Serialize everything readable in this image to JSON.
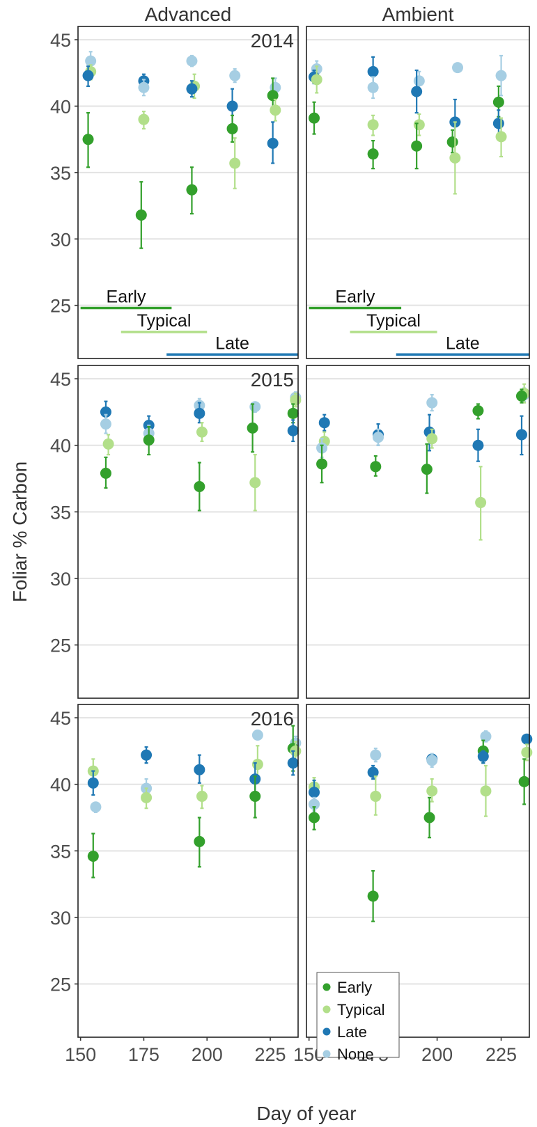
{
  "chart_data": {
    "type": "scatter",
    "xlabel": "Day of year",
    "ylabel": "Foliar % Carbon",
    "xlim": [
      149,
      236
    ],
    "ylim": [
      21,
      46
    ],
    "xticks": [
      150,
      175,
      200,
      225
    ],
    "yticks": [
      25,
      30,
      35,
      40,
      45
    ],
    "columns": [
      "Advanced",
      "Ambient"
    ],
    "rows": [
      "2014",
      "2015",
      "2016"
    ],
    "grid": true,
    "legend_position": "bottom-left of bottom-right panel",
    "series": [
      {
        "name": "Early",
        "color": "#33a02c"
      },
      {
        "name": "Typical",
        "color": "#b2df8a"
      },
      {
        "name": "Late",
        "color": "#1f78b4"
      },
      {
        "name": "None",
        "color": "#a6cee3"
      }
    ],
    "bars_2014": {
      "Advanced": [
        {
          "label": "Early",
          "x0": 150,
          "x1": 186,
          "y": 24.8,
          "color": "#33a02c"
        },
        {
          "label": "Typical",
          "x0": 166,
          "x1": 200,
          "y": 23.0,
          "color": "#b2df8a"
        },
        {
          "label": "Late",
          "x0": 184,
          "x1": 236,
          "y": 21.3,
          "color": "#1f78b4"
        }
      ],
      "Ambient": [
        {
          "label": "Early",
          "x0": 150,
          "x1": 186,
          "y": 24.8,
          "color": "#33a02c"
        },
        {
          "label": "Typical",
          "x0": 166,
          "x1": 200,
          "y": 23.0,
          "color": "#b2df8a"
        },
        {
          "label": "Late",
          "x0": 184,
          "x1": 236,
          "y": 21.3,
          "color": "#1f78b4"
        }
      ]
    },
    "panels": [
      {
        "row": "2014",
        "col": "Advanced",
        "points": [
          {
            "series": "None",
            "x": 154,
            "y": 43.4,
            "lo": 42.7,
            "hi": 44.1
          },
          {
            "series": "Typical",
            "x": 154,
            "y": 42.6,
            "lo": 42.0,
            "hi": 43.1
          },
          {
            "series": "Late",
            "x": 153,
            "y": 42.3,
            "lo": 41.5,
            "hi": 43.0
          },
          {
            "series": "Early",
            "x": 153,
            "y": 37.5,
            "lo": 35.4,
            "hi": 39.5
          },
          {
            "series": "Late",
            "x": 175,
            "y": 41.9,
            "lo": 41.4,
            "hi": 42.4
          },
          {
            "series": "None",
            "x": 175,
            "y": 41.4,
            "lo": 40.8,
            "hi": 42.0
          },
          {
            "series": "Typical",
            "x": 175,
            "y": 39.0,
            "lo": 38.3,
            "hi": 39.6
          },
          {
            "series": "Early",
            "x": 174,
            "y": 31.8,
            "lo": 29.3,
            "hi": 34.3
          },
          {
            "series": "None",
            "x": 194,
            "y": 43.4,
            "lo": 43.0,
            "hi": 43.8
          },
          {
            "series": "Typical",
            "x": 195,
            "y": 41.5,
            "lo": 40.6,
            "hi": 42.4
          },
          {
            "series": "Late",
            "x": 194,
            "y": 41.3,
            "lo": 40.7,
            "hi": 41.9
          },
          {
            "series": "Early",
            "x": 194,
            "y": 33.7,
            "lo": 31.9,
            "hi": 35.4
          },
          {
            "series": "None",
            "x": 211,
            "y": 42.3,
            "lo": 41.8,
            "hi": 42.8
          },
          {
            "series": "Late",
            "x": 210,
            "y": 40.0,
            "lo": 38.6,
            "hi": 41.3
          },
          {
            "series": "Early",
            "x": 210,
            "y": 38.3,
            "lo": 37.3,
            "hi": 39.3
          },
          {
            "series": "Typical",
            "x": 211,
            "y": 35.7,
            "lo": 33.8,
            "hi": 37.6
          },
          {
            "series": "None",
            "x": 227,
            "y": 41.4,
            "lo": 40.8,
            "hi": 42.1
          },
          {
            "series": "Early",
            "x": 226,
            "y": 40.8,
            "lo": 39.5,
            "hi": 42.1
          },
          {
            "series": "Typical",
            "x": 227,
            "y": 39.7,
            "lo": 38.9,
            "hi": 40.5
          },
          {
            "series": "Late",
            "x": 226,
            "y": 37.2,
            "lo": 35.7,
            "hi": 38.8
          }
        ]
      },
      {
        "row": "2014",
        "col": "Ambient",
        "points": [
          {
            "series": "None",
            "x": 153,
            "y": 42.8,
            "lo": 42.2,
            "hi": 43.4
          },
          {
            "series": "Late",
            "x": 152,
            "y": 42.2,
            "lo": 41.7,
            "hi": 42.7
          },
          {
            "series": "Typical",
            "x": 153,
            "y": 42.0,
            "lo": 41.0,
            "hi": 43.0
          },
          {
            "series": "Early",
            "x": 152,
            "y": 39.1,
            "lo": 37.9,
            "hi": 40.3
          },
          {
            "series": "Late",
            "x": 175,
            "y": 42.6,
            "lo": 41.5,
            "hi": 43.7
          },
          {
            "series": "None",
            "x": 175,
            "y": 41.4,
            "lo": 40.6,
            "hi": 42.2
          },
          {
            "series": "Typical",
            "x": 175,
            "y": 38.6,
            "lo": 37.8,
            "hi": 39.3
          },
          {
            "series": "Early",
            "x": 175,
            "y": 36.4,
            "lo": 35.3,
            "hi": 37.4
          },
          {
            "series": "None",
            "x": 193,
            "y": 41.9,
            "lo": 41.1,
            "hi": 42.6
          },
          {
            "series": "Late",
            "x": 192,
            "y": 41.1,
            "lo": 39.5,
            "hi": 42.7
          },
          {
            "series": "Typical",
            "x": 193,
            "y": 38.6,
            "lo": 37.8,
            "hi": 39.4
          },
          {
            "series": "Early",
            "x": 192,
            "y": 37.0,
            "lo": 35.3,
            "hi": 38.7
          },
          {
            "series": "None",
            "x": 208,
            "y": 42.9,
            "lo": 42.6,
            "hi": 43.2
          },
          {
            "series": "Late",
            "x": 207,
            "y": 38.8,
            "lo": 37.1,
            "hi": 40.5
          },
          {
            "series": "Early",
            "x": 206,
            "y": 37.3,
            "lo": 36.5,
            "hi": 38.2
          },
          {
            "series": "Typical",
            "x": 207,
            "y": 36.1,
            "lo": 33.4,
            "hi": 38.8
          },
          {
            "series": "None",
            "x": 225,
            "y": 42.3,
            "lo": 40.8,
            "hi": 43.8
          },
          {
            "series": "Early",
            "x": 224,
            "y": 40.3,
            "lo": 39.2,
            "hi": 41.5
          },
          {
            "series": "Late",
            "x": 224,
            "y": 38.7,
            "lo": 37.6,
            "hi": 39.7
          },
          {
            "series": "Typical",
            "x": 225,
            "y": 37.7,
            "lo": 36.2,
            "hi": 39.1
          }
        ]
      },
      {
        "row": "2015",
        "col": "Advanced",
        "points": [
          {
            "series": "Late",
            "x": 160,
            "y": 42.5,
            "lo": 41.7,
            "hi": 43.3
          },
          {
            "series": "None",
            "x": 160,
            "y": 41.6,
            "lo": 40.9,
            "hi": 42.3
          },
          {
            "series": "Typical",
            "x": 161,
            "y": 40.1,
            "lo": 39.3,
            "hi": 40.8
          },
          {
            "series": "Early",
            "x": 160,
            "y": 37.9,
            "lo": 36.8,
            "hi": 39.1
          },
          {
            "series": "Late",
            "x": 177,
            "y": 41.5,
            "lo": 40.7,
            "hi": 42.2
          },
          {
            "series": "None",
            "x": 177,
            "y": 40.9,
            "lo": 40.3,
            "hi": 41.5
          },
          {
            "series": "Early",
            "x": 177,
            "y": 40.4,
            "lo": 39.3,
            "hi": 41.4
          },
          {
            "series": "None",
            "x": 197,
            "y": 43.0,
            "lo": 42.4,
            "hi": 43.5
          },
          {
            "series": "Late",
            "x": 197,
            "y": 42.4,
            "lo": 41.7,
            "hi": 43.2
          },
          {
            "series": "Typical",
            "x": 198,
            "y": 41.0,
            "lo": 40.3,
            "hi": 41.7
          },
          {
            "series": "Early",
            "x": 197,
            "y": 36.9,
            "lo": 35.1,
            "hi": 38.7
          },
          {
            "series": "None",
            "x": 219,
            "y": 42.9,
            "lo": 42.5,
            "hi": 43.2
          },
          {
            "series": "Early",
            "x": 218,
            "y": 41.3,
            "lo": 39.5,
            "hi": 43.1
          },
          {
            "series": "Typical",
            "x": 219,
            "y": 37.2,
            "lo": 35.1,
            "hi": 39.3
          },
          {
            "series": "None",
            "x": 235,
            "y": 43.6,
            "lo": 43.2,
            "hi": 44.0
          },
          {
            "series": "Typical",
            "x": 235,
            "y": 43.4,
            "lo": 42.9,
            "hi": 43.9
          },
          {
            "series": "Early",
            "x": 234,
            "y": 42.4,
            "lo": 41.7,
            "hi": 43.1
          },
          {
            "series": "Late",
            "x": 234,
            "y": 41.1,
            "lo": 40.3,
            "hi": 41.9
          }
        ]
      },
      {
        "row": "2015",
        "col": "Ambient",
        "points": [
          {
            "series": "Late",
            "x": 156,
            "y": 41.7,
            "lo": 41.1,
            "hi": 42.3
          },
          {
            "series": "Typical",
            "x": 156,
            "y": 40.3,
            "lo": 39.6,
            "hi": 41.0
          },
          {
            "series": "None",
            "x": 155,
            "y": 39.8,
            "lo": 39.1,
            "hi": 40.5
          },
          {
            "series": "Early",
            "x": 155,
            "y": 38.6,
            "lo": 37.2,
            "hi": 40.0
          },
          {
            "series": "Late",
            "x": 177,
            "y": 40.8,
            "lo": 40.0,
            "hi": 41.6
          },
          {
            "series": "None",
            "x": 177,
            "y": 40.6,
            "lo": 40.0,
            "hi": 41.2
          },
          {
            "series": "Early",
            "x": 176,
            "y": 38.4,
            "lo": 37.7,
            "hi": 39.2
          },
          {
            "series": "None",
            "x": 198,
            "y": 43.2,
            "lo": 42.6,
            "hi": 43.8
          },
          {
            "series": "Late",
            "x": 197,
            "y": 41.0,
            "lo": 39.6,
            "hi": 42.3
          },
          {
            "series": "Typical",
            "x": 198,
            "y": 40.5,
            "lo": 39.8,
            "hi": 41.2
          },
          {
            "series": "Early",
            "x": 196,
            "y": 38.2,
            "lo": 36.4,
            "hi": 40.1
          },
          {
            "series": "Early",
            "x": 216,
            "y": 42.6,
            "lo": 42.0,
            "hi": 43.1
          },
          {
            "series": "Late",
            "x": 216,
            "y": 40.0,
            "lo": 38.8,
            "hi": 41.2
          },
          {
            "series": "Typical",
            "x": 217,
            "y": 35.7,
            "lo": 32.9,
            "hi": 38.4
          },
          {
            "series": "None",
            "x": 234,
            "y": 43.8,
            "lo": 43.3,
            "hi": 44.3
          },
          {
            "series": "Typical",
            "x": 234,
            "y": 43.9,
            "lo": 43.2,
            "hi": 44.6
          },
          {
            "series": "Early",
            "x": 233,
            "y": 43.7,
            "lo": 43.2,
            "hi": 44.2
          },
          {
            "series": "Late",
            "x": 233,
            "y": 40.8,
            "lo": 39.3,
            "hi": 42.2
          }
        ]
      },
      {
        "row": "2016",
        "col": "Advanced",
        "points": [
          {
            "series": "Typical",
            "x": 155,
            "y": 41.0,
            "lo": 40.1,
            "hi": 41.9
          },
          {
            "series": "Late",
            "x": 155,
            "y": 40.1,
            "lo": 39.2,
            "hi": 41.0
          },
          {
            "series": "None",
            "x": 156,
            "y": 38.3,
            "lo": 37.9,
            "hi": 38.6
          },
          {
            "series": "Early",
            "x": 155,
            "y": 34.6,
            "lo": 33.0,
            "hi": 36.3
          },
          {
            "series": "Late",
            "x": 176,
            "y": 42.2,
            "lo": 41.6,
            "hi": 42.8
          },
          {
            "series": "None",
            "x": 176,
            "y": 39.7,
            "lo": 39.1,
            "hi": 40.4
          },
          {
            "series": "Typical",
            "x": 176,
            "y": 39.0,
            "lo": 38.2,
            "hi": 39.7
          },
          {
            "series": "Late",
            "x": 197,
            "y": 41.1,
            "lo": 40.1,
            "hi": 42.2
          },
          {
            "series": "Typical",
            "x": 198,
            "y": 39.1,
            "lo": 38.2,
            "hi": 39.9
          },
          {
            "series": "Early",
            "x": 197,
            "y": 35.7,
            "lo": 33.8,
            "hi": 37.5
          },
          {
            "series": "None",
            "x": 220,
            "y": 43.7,
            "lo": 43.4,
            "hi": 44.0
          },
          {
            "series": "Typical",
            "x": 220,
            "y": 41.5,
            "lo": 40.1,
            "hi": 42.9
          },
          {
            "series": "Late",
            "x": 219,
            "y": 40.4,
            "lo": 39.1,
            "hi": 41.6
          },
          {
            "series": "Early",
            "x": 219,
            "y": 39.1,
            "lo": 37.5,
            "hi": 40.6
          },
          {
            "series": "None",
            "x": 235,
            "y": 43.1,
            "lo": 42.6,
            "hi": 43.6
          },
          {
            "series": "Early",
            "x": 234,
            "y": 42.7,
            "lo": 41.0,
            "hi": 44.4
          },
          {
            "series": "Typical",
            "x": 235,
            "y": 42.5,
            "lo": 41.8,
            "hi": 43.2
          },
          {
            "series": "Late",
            "x": 234,
            "y": 41.6,
            "lo": 40.7,
            "hi": 42.5
          }
        ]
      },
      {
        "row": "2016",
        "col": "Ambient",
        "points": [
          {
            "series": "Typical",
            "x": 152,
            "y": 39.8,
            "lo": 39.1,
            "hi": 40.5
          },
          {
            "series": "Late",
            "x": 152,
            "y": 39.4,
            "lo": 38.5,
            "hi": 40.3
          },
          {
            "series": "None",
            "x": 152,
            "y": 38.5,
            "lo": 38.0,
            "hi": 39.0
          },
          {
            "series": "Early",
            "x": 152,
            "y": 37.5,
            "lo": 36.6,
            "hi": 38.3
          },
          {
            "series": "None",
            "x": 176,
            "y": 42.2,
            "lo": 41.7,
            "hi": 42.7
          },
          {
            "series": "Late",
            "x": 175,
            "y": 40.9,
            "lo": 40.4,
            "hi": 41.4
          },
          {
            "series": "Typical",
            "x": 176,
            "y": 39.1,
            "lo": 37.7,
            "hi": 40.6
          },
          {
            "series": "Early",
            "x": 175,
            "y": 31.6,
            "lo": 29.7,
            "hi": 33.5
          },
          {
            "series": "Late",
            "x": 198,
            "y": 41.9,
            "lo": 41.5,
            "hi": 42.2
          },
          {
            "series": "None",
            "x": 198,
            "y": 41.8,
            "lo": 41.3,
            "hi": 42.3
          },
          {
            "series": "Typical",
            "x": 198,
            "y": 39.5,
            "lo": 38.7,
            "hi": 40.4
          },
          {
            "series": "Early",
            "x": 197,
            "y": 37.5,
            "lo": 36.0,
            "hi": 39.0
          },
          {
            "series": "None",
            "x": 219,
            "y": 43.6,
            "lo": 43.2,
            "hi": 44.0
          },
          {
            "series": "Early",
            "x": 218,
            "y": 42.5,
            "lo": 41.6,
            "hi": 43.3
          },
          {
            "series": "Late",
            "x": 218,
            "y": 42.1,
            "lo": 41.6,
            "hi": 42.5
          },
          {
            "series": "Typical",
            "x": 219,
            "y": 39.5,
            "lo": 37.6,
            "hi": 41.4
          },
          {
            "series": "Late",
            "x": 235,
            "y": 43.4,
            "lo": 43.1,
            "hi": 43.7
          },
          {
            "series": "Typical",
            "x": 235,
            "y": 42.4,
            "lo": 41.8,
            "hi": 43.0
          },
          {
            "series": "Early",
            "x": 234,
            "y": 40.2,
            "lo": 38.5,
            "hi": 41.9
          }
        ]
      }
    ]
  }
}
